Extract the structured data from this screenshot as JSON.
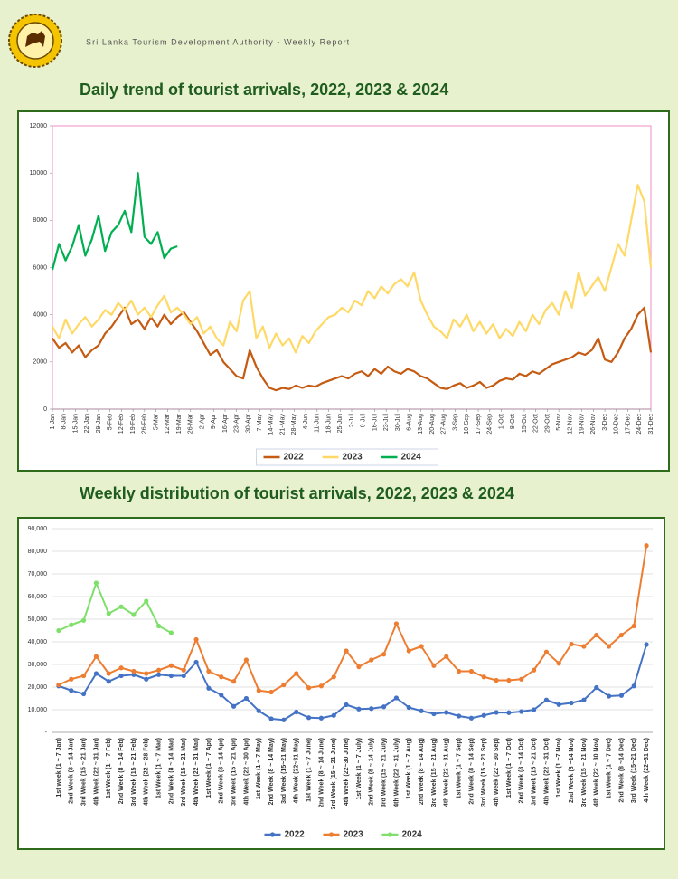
{
  "header": {
    "title": "Sri Lanka Tourism Development Authority - Weekly Report"
  },
  "chart_data": [
    {
      "type": "line",
      "title": "Daily trend of tourist arrivals, 2022, 2023 & 2024",
      "legend": "bottom",
      "grid": false,
      "markers": false,
      "xlim": [
        1,
        365
      ],
      "ylim": [
        0,
        12000
      ],
      "yticks": [
        0,
        2000,
        4000,
        6000,
        8000,
        10000,
        12000
      ],
      "xticks": [
        {
          "value": 1,
          "label": "1-Jan"
        },
        {
          "value": 8,
          "label": "8-Jan"
        },
        {
          "value": 15,
          "label": "15-Jan"
        },
        {
          "value": 22,
          "label": "22-Jan"
        },
        {
          "value": 29,
          "label": "29-Jan"
        },
        {
          "value": 36,
          "label": "5-Feb"
        },
        {
          "value": 43,
          "label": "12-Feb"
        },
        {
          "value": 50,
          "label": "19-Feb"
        },
        {
          "value": 57,
          "label": "26-Feb"
        },
        {
          "value": 64,
          "label": "5-Mar"
        },
        {
          "value": 71,
          "label": "12-Mar"
        },
        {
          "value": 78,
          "label": "19-Mar"
        },
        {
          "value": 85,
          "label": "26-Mar"
        },
        {
          "value": 92,
          "label": "2-Apr"
        },
        {
          "value": 99,
          "label": "9-Apr"
        },
        {
          "value": 106,
          "label": "16-Apr"
        },
        {
          "value": 113,
          "label": "23-Apr"
        },
        {
          "value": 120,
          "label": "30-Apr"
        },
        {
          "value": 127,
          "label": "7-May"
        },
        {
          "value": 134,
          "label": "14-May"
        },
        {
          "value": 141,
          "label": "21-May"
        },
        {
          "value": 148,
          "label": "28-May"
        },
        {
          "value": 155,
          "label": "4-Jun"
        },
        {
          "value": 162,
          "label": "11-Jun"
        },
        {
          "value": 169,
          "label": "18-Jun"
        },
        {
          "value": 176,
          "label": "25-Jun"
        },
        {
          "value": 183,
          "label": "2-Jul"
        },
        {
          "value": 190,
          "label": "9-Jul"
        },
        {
          "value": 197,
          "label": "16-Jul"
        },
        {
          "value": 204,
          "label": "23-Jul"
        },
        {
          "value": 211,
          "label": "30-Jul"
        },
        {
          "value": 218,
          "label": "6-Aug"
        },
        {
          "value": 225,
          "label": "13-Aug"
        },
        {
          "value": 232,
          "label": "20-Aug"
        },
        {
          "value": 239,
          "label": "27-Aug"
        },
        {
          "value": 246,
          "label": "3-Sep"
        },
        {
          "value": 253,
          "label": "10-Sep"
        },
        {
          "value": 260,
          "label": "17-Sep"
        },
        {
          "value": 267,
          "label": "24-Sep"
        },
        {
          "value": 274,
          "label": "1-Oct"
        },
        {
          "value": 281,
          "label": "8-Oct"
        },
        {
          "value": 288,
          "label": "15-Oct"
        },
        {
          "value": 295,
          "label": "22-Oct"
        },
        {
          "value": 302,
          "label": "29-Oct"
        },
        {
          "value": 309,
          "label": "5-Nov"
        },
        {
          "value": 316,
          "label": "12-Nov"
        },
        {
          "value": 323,
          "label": "19-Nov"
        },
        {
          "value": 330,
          "label": "26-Nov"
        },
        {
          "value": 337,
          "label": "3-Dec"
        },
        {
          "value": 344,
          "label": "10-Dec"
        },
        {
          "value": 351,
          "label": "17-Dec"
        },
        {
          "value": 358,
          "label": "24-Dec"
        },
        {
          "value": 365,
          "label": "31-Dec"
        }
      ],
      "x": [
        1,
        5,
        9,
        13,
        17,
        21,
        25,
        29,
        33,
        37,
        41,
        45,
        49,
        53,
        57,
        61,
        65,
        69,
        73,
        77,
        81,
        85,
        89,
        93,
        97,
        101,
        105,
        109,
        113,
        117,
        121,
        125,
        129,
        133,
        137,
        141,
        145,
        149,
        153,
        157,
        161,
        165,
        169,
        173,
        177,
        181,
        185,
        189,
        193,
        197,
        201,
        205,
        209,
        213,
        217,
        221,
        225,
        229,
        233,
        237,
        241,
        245,
        249,
        253,
        257,
        261,
        265,
        269,
        273,
        277,
        281,
        285,
        289,
        293,
        297,
        301,
        305,
        309,
        313,
        317,
        321,
        325,
        329,
        333,
        337,
        341,
        345,
        349,
        353,
        357,
        361,
        365
      ],
      "series": [
        {
          "name": "2022",
          "color": "#c55a11",
          "values": [
            3000,
            2600,
            2800,
            2400,
            2700,
            2200,
            2500,
            2700,
            3200,
            3500,
            3900,
            4300,
            3600,
            3800,
            3400,
            3900,
            3500,
            4000,
            3600,
            3900,
            4100,
            3700,
            3300,
            2800,
            2300,
            2500,
            2000,
            1700,
            1400,
            1300,
            2500,
            1800,
            1300,
            900,
            800,
            900,
            850,
            1000,
            900,
            1000,
            950,
            1100,
            1200,
            1300,
            1400,
            1300,
            1500,
            1600,
            1400,
            1700,
            1500,
            1800,
            1600,
            1500,
            1700,
            1600,
            1400,
            1300,
            1100,
            900,
            850,
            1000,
            1100,
            900,
            1000,
            1150,
            900,
            1000,
            1200,
            1300,
            1250,
            1500,
            1400,
            1600,
            1500,
            1700,
            1900,
            2000,
            2100,
            2200,
            2400,
            2300,
            2500,
            3000,
            2100,
            2000,
            2400,
            3000,
            3400,
            4000,
            4300,
            2400
          ]
        },
        {
          "name": "2023",
          "color": "#ffd966",
          "values": [
            3500,
            3000,
            3800,
            3200,
            3600,
            3900,
            3500,
            3800,
            4200,
            4000,
            4500,
            4200,
            4600,
            4000,
            4300,
            3900,
            4400,
            4800,
            4100,
            4300,
            4000,
            3600,
            3900,
            3200,
            3500,
            3000,
            2700,
            3700,
            3300,
            4600,
            5000,
            3000,
            3500,
            2600,
            3200,
            2700,
            3000,
            2400,
            3100,
            2800,
            3300,
            3600,
            3900,
            4000,
            4300,
            4100,
            4600,
            4400,
            5000,
            4700,
            5200,
            4900,
            5300,
            5500,
            5200,
            5800,
            4600,
            4000,
            3500,
            3300,
            3000,
            3800,
            3500,
            4000,
            3300,
            3700,
            3200,
            3600,
            3000,
            3400,
            3100,
            3700,
            3300,
            4000,
            3600,
            4200,
            4500,
            4000,
            5000,
            4300,
            5800,
            4800,
            5200,
            5600,
            5000,
            6000,
            7000,
            6500,
            8000,
            9500,
            8800,
            6000
          ]
        },
        {
          "name": "2024",
          "color": "#00b050",
          "values": [
            5900,
            7000,
            6300,
            6900,
            7800,
            6500,
            7200,
            8200,
            6700,
            7500,
            7800,
            8400,
            7500,
            10000,
            7300,
            7000,
            7500,
            6400,
            6800,
            6900,
            null,
            null,
            null,
            null,
            null,
            null,
            null,
            null,
            null,
            null,
            null,
            null,
            null,
            null,
            null,
            null,
            null,
            null,
            null,
            null,
            null,
            null,
            null,
            null,
            null,
            null,
            null,
            null,
            null,
            null,
            null,
            null,
            null,
            null,
            null,
            null,
            null,
            null,
            null,
            null,
            null,
            null,
            null,
            null,
            null,
            null,
            null,
            null,
            null,
            null,
            null,
            null,
            null,
            null,
            null,
            null,
            null,
            null,
            null,
            null,
            null,
            null,
            null,
            null,
            null,
            null,
            null,
            null,
            null,
            null,
            null,
            null
          ]
        }
      ]
    },
    {
      "type": "line",
      "title": "Weekly distribution of tourist arrivals, 2022, 2023 & 2024",
      "legend": "bottom",
      "grid": true,
      "markers": true,
      "ylim": [
        0,
        90000
      ],
      "yticks": [
        {
          "value": 0,
          "label": "-"
        },
        {
          "value": 10000,
          "label": "10,000"
        },
        {
          "value": 20000,
          "label": "20,000"
        },
        {
          "value": 30000,
          "label": "30,000"
        },
        {
          "value": 40000,
          "label": "40,000"
        },
        {
          "value": 50000,
          "label": "50,000"
        },
        {
          "value": 60000,
          "label": "60,000"
        },
        {
          "value": 70000,
          "label": "70,000"
        },
        {
          "value": 80000,
          "label": "80,000"
        },
        {
          "value": 90000,
          "label": "90,000"
        }
      ],
      "categories": [
        "1st week (1 ~ 7 Jan)",
        "2nd Week (8 ~ 14 Jan)",
        "3rd Week (15 ~ 21 Jan)",
        "4th Week (22 ~ 31 Jan)",
        "1st Week (1 ~ 7 Feb)",
        "2nd Week (8 ~ 14 Feb)",
        "3rd Week (15 ~ 21 Feb)",
        "4th Week (22 ~ 28 Feb)",
        "1st Week (1 ~ 7 Mar)",
        "2nd Week (8 ~ 14 Mar)",
        "3rd Week (15 ~ 21 Mar)",
        "4th Week (22 ~ 31 Mar)",
        "1st Week (1 ~ 7 Apr)",
        "2nd Week (8 ~ 14 Apr)",
        "3rd Week (15 ~ 21 Apr)",
        "4th Week (22 ~ 30 Apr)",
        "1st Week (1 ~ 7 May)",
        "2nd Week (8 ~ 14 May)",
        "3rd Week (15~21 May)",
        "4th Week (22~31 May)",
        "1st Week (1 ~ 7 June)",
        "2nd Week (8 ~ 14 June)",
        "3rd Week (15 ~ 21 June)",
        "4th Week (22~30 June)",
        "1st Week (1 ~ 7 July)",
        "2nd Week (8 ~ 14 July)",
        "3rd Week (15 ~ 21 July)",
        "4th Week (22 ~ 31 July)",
        "1st Week (1 ~ 7 Aug)",
        "2nd Week (8 ~ 14 Aug)",
        "3rd Week (15 ~ 21 Aug)",
        "4th Week (22 ~ 31 Aug)",
        "1st Week (1 ~ 7 Sep)",
        "2nd Week (8 ~ 14 Sep)",
        "3rd Week (15 ~ 21 Sep)",
        "4th Week (22 ~ 30 Sep)",
        "1st Week (1 ~ 7 Oct)",
        "2nd Week (8 ~ 14 Oct)",
        "3rd Week (15 ~ 21 Oct)",
        "4th Week (22 ~ 31 Oct)",
        "1st Week (1 ~7 Nov)",
        "2nd Week (8 ~14 Nov)",
        "3rd Week (15 ~ 21 Nov)",
        "4th Week (22 ~ 30 Nov)",
        "1st Week (1 ~ 7 Dec)",
        "2nd Week (8 ~14 Dec)",
        "3rd Week (15~21 Dec)",
        "4th Week (22~31 Dec)"
      ],
      "series": [
        {
          "name": "2022",
          "color": "#4472c4",
          "values": [
            20500,
            18500,
            17000,
            26000,
            22500,
            25000,
            25500,
            23500,
            25500,
            25000,
            25000,
            31000,
            19500,
            16500,
            11500,
            15000,
            9500,
            6000,
            5500,
            9000,
            6500,
            6300,
            7500,
            12200,
            10300,
            10500,
            11300,
            15200,
            11000,
            9500,
            8200,
            8800,
            7200,
            6300,
            7500,
            8800,
            8700,
            9200,
            10000,
            14300,
            12300,
            13000,
            14300,
            19800,
            16000,
            16300,
            20500,
            38800
          ]
        },
        {
          "name": "2023",
          "color": "#ed7d31",
          "values": [
            21000,
            23500,
            25000,
            33500,
            26000,
            28500,
            27000,
            26000,
            27500,
            29500,
            27500,
            41000,
            27000,
            24500,
            22500,
            32000,
            18500,
            17800,
            21000,
            26000,
            19700,
            20500,
            24500,
            36000,
            29000,
            32000,
            34500,
            48000,
            36000,
            38000,
            29500,
            33500,
            27000,
            27000,
            24500,
            23000,
            23000,
            23500,
            27500,
            35500,
            30500,
            39000,
            38000,
            43000,
            38000,
            43000,
            47000,
            82500
          ]
        },
        {
          "name": "2024",
          "color": "#7ee06a",
          "values": [
            45000,
            47500,
            49500,
            66000,
            52500,
            55500,
            52000,
            58000,
            47000,
            44000,
            null,
            null,
            null,
            null,
            null,
            null,
            null,
            null,
            null,
            null,
            null,
            null,
            null,
            null,
            null,
            null,
            null,
            null,
            null,
            null,
            null,
            null,
            null,
            null,
            null,
            null,
            null,
            null,
            null,
            null,
            null,
            null,
            null,
            null,
            null,
            null,
            null,
            null
          ]
        }
      ]
    }
  ]
}
